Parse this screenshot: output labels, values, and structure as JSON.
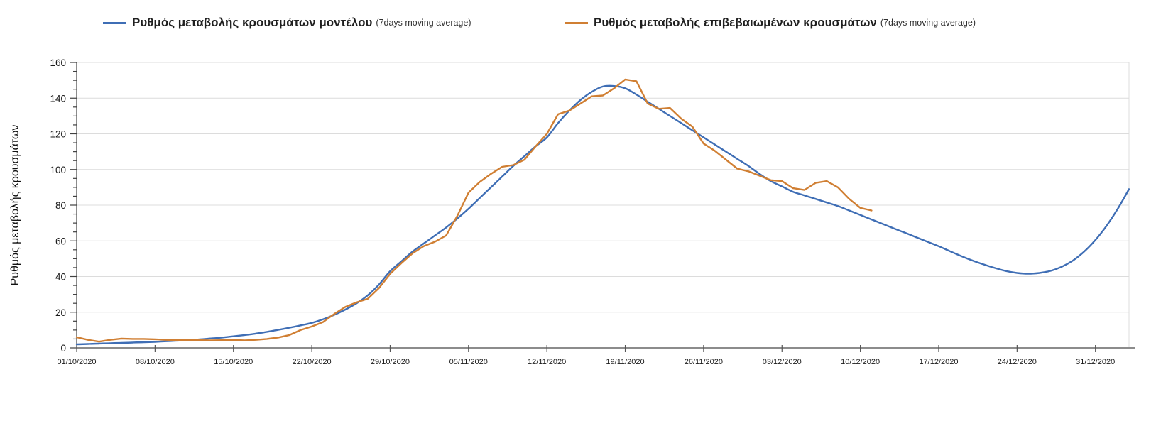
{
  "legend": {
    "items": [
      {
        "id": "model",
        "label": "Ρυθμός μεταβολής κρουσμάτων μοντέλου",
        "suffix": "(7days moving average)",
        "color": "#3f6eb5"
      },
      {
        "id": "confirmed",
        "label": "Ρυθμός μεταβολής επιβεβαιωμένων κρουσμάτων",
        "suffix": "(7days moving average)",
        "color": "#d07f33"
      }
    ]
  },
  "chart_data": {
    "type": "line",
    "title": "",
    "xlabel": "",
    "ylabel": "Ρυθμός μεταβολής κρουσμάτων",
    "ylim": [
      0,
      160
    ],
    "y_tick_labels": [
      0,
      20,
      40,
      60,
      80,
      100,
      120,
      140,
      160
    ],
    "y_minor_step": 5,
    "grid": true,
    "legend_position": "top",
    "grid_color": "#dcdcdc",
    "x_axis_color": "#8c8c8c",
    "y_axis_color": "#404040",
    "x_tick_labels": [
      "01/10/2020",
      "08/10/2020",
      "15/10/2020",
      "22/10/2020",
      "29/10/2020",
      "05/11/2020",
      "12/11/2020",
      "19/11/2020",
      "26/11/2020",
      "03/12/2020",
      "10/12/2020",
      "17/12/2020",
      "24/12/2020",
      "31/12/2020"
    ],
    "x_tick_interval_days": 7,
    "x_total_days": 94,
    "series": [
      {
        "id": "model",
        "name": "Ρυθμός μεταβολής κρουσμάτων μοντέλου (7days moving average)",
        "color": "#3f6eb5",
        "smooth": true,
        "start_day": 0,
        "values": [
          2,
          2.2,
          2.4,
          2.6,
          2.8,
          3,
          3.2,
          3.4,
          3.7,
          4,
          4.4,
          4.8,
          5.3,
          5.8,
          6.5,
          7.2,
          8,
          9,
          10.1,
          11.3,
          12.6,
          14,
          16,
          18.5,
          21.5,
          25,
          29.5,
          35.5,
          43,
          48.5,
          54,
          58.5,
          63,
          67.5,
          72.5,
          78,
          84,
          90,
          96,
          102,
          107.5,
          113,
          118,
          126,
          133,
          139,
          143.5,
          146.5,
          146.8,
          145.5,
          142,
          138,
          134,
          130,
          126,
          122,
          118,
          114,
          110,
          106,
          102,
          97.5,
          93.5,
          90.5,
          87.5,
          85.5,
          83.5,
          81.5,
          79.5,
          77,
          74.5,
          72,
          69.5,
          67,
          64.5,
          62,
          59.5,
          57,
          54.2,
          51.5,
          49,
          46.8,
          44.8,
          43.1,
          42,
          41.6,
          42,
          43.2,
          45.5,
          49,
          54,
          60.5,
          68.5,
          78,
          89
        ]
      },
      {
        "id": "confirmed",
        "name": "Ρυθμός μεταβολής επιβεβαιωμένων κρουσμάτων (7days moving average)",
        "color": "#d07f33",
        "smooth": false,
        "start_day": 0,
        "values": [
          6,
          4.5,
          3.5,
          4.5,
          5.2,
          5,
          5,
          4.8,
          4.5,
          4.3,
          4.5,
          4.3,
          4.2,
          4.3,
          4.5,
          4.2,
          4.5,
          5,
          5.8,
          7.2,
          10,
          12,
          14.5,
          19,
          23,
          25.5,
          27.5,
          33.5,
          41.5,
          47.5,
          53,
          57,
          59.5,
          63,
          74,
          87,
          93,
          97.5,
          101.5,
          102.5,
          105.5,
          113,
          120,
          131,
          133,
          137,
          141,
          141.5,
          145.5,
          150.5,
          149.5,
          137,
          134,
          134.5,
          128.5,
          124,
          114.5,
          110.5,
          105.5,
          100.5,
          99,
          96.5,
          94,
          93.5,
          89.5,
          88.5,
          92.5,
          93.5,
          90,
          83.5,
          78.5,
          77
        ]
      }
    ]
  }
}
